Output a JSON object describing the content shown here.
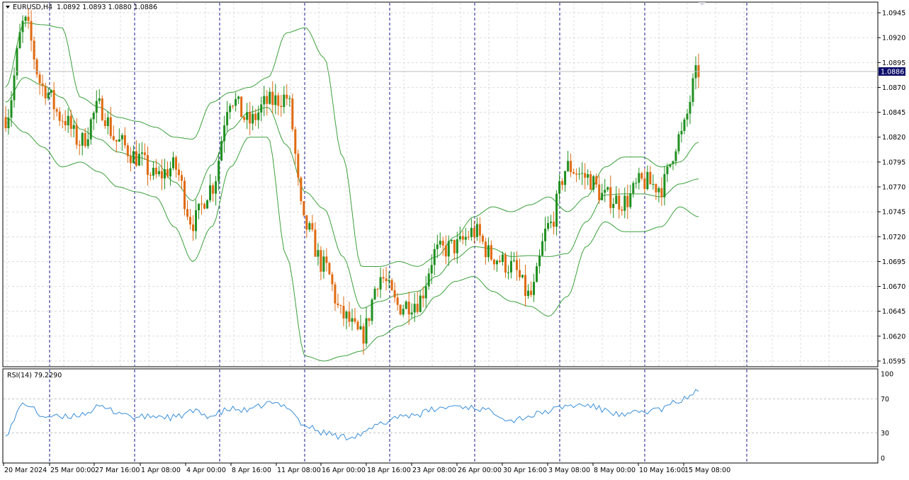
{
  "chart_data": [
    {
      "type": "candlestick",
      "title": "EURUSD,H4",
      "ohlc_header": "1.0892 1.0893 1.0880 1.0886",
      "current_price": "1.0886",
      "ylim": [
        1.059,
        1.0955
      ],
      "yticks": [
        "1.0945",
        "1.0920",
        "1.0895",
        "1.0870",
        "1.0845",
        "1.0820",
        "1.0795",
        "1.0770",
        "1.0745",
        "1.0720",
        "1.0695",
        "1.0670",
        "1.0645",
        "1.0620",
        "1.0595"
      ],
      "xticks": [
        "20 Mar 2024",
        "25 Mar 00:00",
        "27 Mar 16:00",
        "1 Apr 08:00",
        "4 Apr 00:00",
        "8 Apr 16:00",
        "11 Apr 08:00",
        "16 Apr 00:00",
        "18 Apr 16:00",
        "23 Apr 08:00",
        "26 Apr 00:00",
        "30 Apr 16:00",
        "3 May 08:00",
        "8 May 00:00",
        "10 May 16:00",
        "15 May 08:00"
      ],
      "indicator": "Bollinger Bands",
      "bands_anchor": {
        "upper": [
          1.087,
          1.0935,
          1.0933,
          1.093,
          1.086,
          1.085,
          1.084,
          1.0836,
          1.083,
          1.082,
          1.0818,
          1.0855,
          1.0865,
          1.087,
          1.088,
          1.0925,
          1.093,
          1.09,
          1.08,
          1.069,
          1.069,
          1.0695,
          1.069,
          1.07,
          1.072,
          1.074,
          1.075,
          1.0745,
          1.0752,
          1.076,
          1.0745,
          1.076,
          1.079,
          1.08,
          1.08,
          1.079,
          1.0795,
          1.0815
        ],
        "lower": [
          1.084,
          1.0825,
          1.081,
          1.079,
          1.0795,
          1.0785,
          1.077,
          1.0765,
          1.076,
          1.073,
          1.0695,
          1.073,
          1.079,
          1.082,
          1.082,
          1.07,
          1.06,
          1.0595,
          1.06,
          1.0605,
          1.062,
          1.063,
          1.064,
          1.066,
          1.0675,
          1.068,
          1.0665,
          1.0655,
          1.065,
          1.064,
          1.066,
          1.071,
          1.0735,
          1.0725,
          1.0725,
          1.073,
          1.075,
          1.074
        ],
        "middle": [
          1.0855,
          1.088,
          1.0872,
          1.086,
          1.0828,
          1.0818,
          1.0805,
          1.08,
          1.0795,
          1.0775,
          1.0756,
          1.0792,
          1.0828,
          1.0845,
          1.085,
          1.0812,
          1.0765,
          1.0748,
          1.07,
          1.0648,
          1.0655,
          1.0662,
          1.0665,
          1.068,
          1.0698,
          1.071,
          1.0708,
          1.07,
          1.0701,
          1.07,
          1.0703,
          1.0735,
          1.0762,
          1.0763,
          1.0763,
          1.076,
          1.0773,
          1.0778
        ]
      },
      "close_anchor": [
        1.084,
        1.0935,
        1.087,
        1.084,
        1.0815,
        1.085,
        1.0815,
        1.08,
        1.078,
        1.079,
        1.0735,
        1.077,
        1.086,
        1.0835,
        1.0855,
        1.086,
        1.073,
        1.069,
        1.064,
        1.062,
        1.068,
        1.065,
        1.0655,
        1.0705,
        1.071,
        1.0725,
        1.07,
        1.069,
        1.066,
        1.073,
        1.079,
        1.078,
        1.076,
        1.0755,
        1.0775,
        1.077,
        1.082,
        1.0886
      ]
    },
    {
      "type": "line",
      "title": "RSI(14) 79.2290",
      "ylim": [
        0,
        100
      ],
      "yticks": [
        "100",
        "70",
        "30",
        "0"
      ],
      "levels": [
        70,
        30
      ],
      "values_anchor": [
        30,
        65,
        50,
        48,
        52,
        60,
        55,
        48,
        50,
        48,
        55,
        50,
        58,
        56,
        65,
        62,
        38,
        30,
        25,
        28,
        40,
        50,
        52,
        58,
        62,
        60,
        55,
        45,
        50,
        56,
        62,
        63,
        57,
        50,
        55,
        58,
        68,
        79.229
      ]
    }
  ],
  "colors": {
    "bull": "#1f8f1f",
    "bear": "#e06a10",
    "band": "#3ca03c",
    "rsi": "#3a8fd9",
    "grid": "#c8c8c8",
    "period_sep": "#1a1a8c",
    "price_box": "#0c0c6a"
  }
}
